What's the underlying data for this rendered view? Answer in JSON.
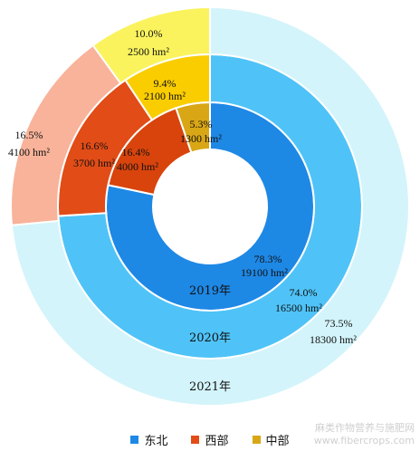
{
  "chart_data": {
    "type": "pie",
    "subtype": "nested-donut",
    "categories": [
      "东北",
      "西部",
      "中部"
    ],
    "colors": {
      "东北": [
        "#1E88E5",
        "#4FC3F7",
        "#D3F4FA"
      ],
      "西部": [
        "#D8440C",
        "#E24C17",
        "#F8B39A"
      ],
      "中部": [
        "#D9A615",
        "#FACD00",
        "#FAF35E"
      ]
    },
    "rings": [
      {
        "name": "2019年",
        "slices": [
          {
            "category": "东北",
            "percent": 78.3,
            "label_pct": "78.3%",
            "label_area": "19100 hm²"
          },
          {
            "category": "西部",
            "percent": 16.4,
            "label_pct": "16.4%",
            "label_area": "4000 hm²"
          },
          {
            "category": "中部",
            "percent": 5.3,
            "label_pct": "5.3%",
            "label_area": "1300 hm²"
          }
        ]
      },
      {
        "name": "2020年",
        "slices": [
          {
            "category": "东北",
            "percent": 74.0,
            "label_pct": "74.0%",
            "label_area": "16500 hm²"
          },
          {
            "category": "西部",
            "percent": 16.6,
            "label_pct": "16.6%",
            "label_area": "3700 hm²"
          },
          {
            "category": "中部",
            "percent": 9.4,
            "label_pct": "9.4%",
            "label_area": "2100 hm²"
          }
        ]
      },
      {
        "name": "2021年",
        "slices": [
          {
            "category": "东北",
            "percent": 73.5,
            "label_pct": "73.5%",
            "label_area": "18300 hm²"
          },
          {
            "category": "西部",
            "percent": 16.5,
            "label_pct": "16.5%",
            "label_area": "4100 hm²"
          },
          {
            "category": "中部",
            "percent": 10.0,
            "label_pct": "10.0%",
            "label_area": "2500 hm²"
          }
        ]
      }
    ],
    "legend": {
      "placement": "bottom",
      "entries": [
        "东北",
        "西部",
        "中部"
      ]
    }
  },
  "watermark": {
    "line1": "麻类作物营养与施肥网",
    "line2": "www.fibercrops.com"
  }
}
